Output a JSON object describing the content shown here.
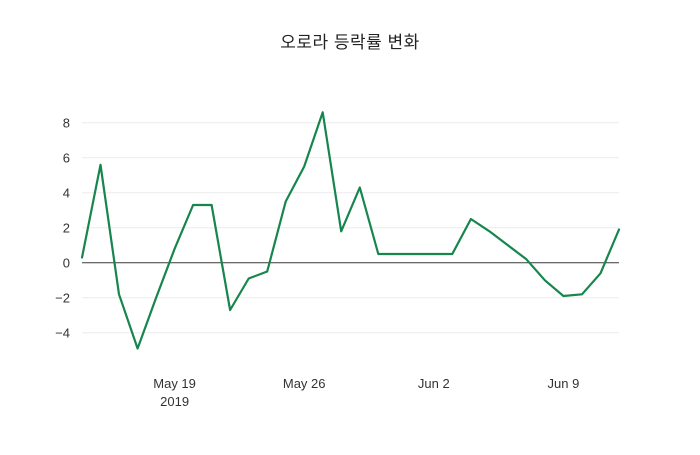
{
  "chart_data": {
    "type": "line",
    "title": "오로라 등락률 변화",
    "xlabel": "",
    "ylabel": "",
    "grid": "horizontal",
    "legend": "none",
    "zero_line": true,
    "line_color": "#17854e",
    "grid_color": "#ececec",
    "zero_line_color": "#3a3a3a",
    "tick_label_color": "#333333",
    "ylim": [
      -5.9,
      9.7
    ],
    "y_ticks": [
      -4,
      -2,
      0,
      2,
      4,
      6,
      8
    ],
    "y_tick_labels": [
      "−4",
      "−2",
      "0",
      "2",
      "4",
      "6",
      "8"
    ],
    "x": [
      "2019-05-14",
      "2019-05-15",
      "2019-05-16",
      "2019-05-17",
      "2019-05-18",
      "2019-05-19",
      "2019-05-20",
      "2019-05-21",
      "2019-05-22",
      "2019-05-23",
      "2019-05-24",
      "2019-05-25",
      "2019-05-26",
      "2019-05-27",
      "2019-05-28",
      "2019-05-29",
      "2019-05-30",
      "2019-05-31",
      "2019-06-01",
      "2019-06-02",
      "2019-06-03",
      "2019-06-04",
      "2019-06-05",
      "2019-06-06",
      "2019-06-07",
      "2019-06-08",
      "2019-06-09",
      "2019-06-10",
      "2019-06-11",
      "2019-06-12"
    ],
    "series": [
      {
        "name": "등락률",
        "values": [
          0.3,
          5.6,
          -1.8,
          -4.9,
          -2.0,
          0.8,
          3.3,
          3.3,
          -2.7,
          -0.9,
          -0.5,
          3.5,
          5.5,
          8.6,
          1.8,
          4.3,
          0.5,
          0.5,
          0.5,
          0.5,
          0.5,
          2.5,
          1.8,
          1.0,
          0.2,
          -1.0,
          -1.9,
          -1.8,
          -0.6,
          1.9
        ]
      }
    ],
    "x_tick_labels": [
      {
        "index": 5,
        "label": "May 19",
        "sublabel": "2019"
      },
      {
        "index": 12,
        "label": "May 26",
        "sublabel": ""
      },
      {
        "index": 19,
        "label": "Jun 2",
        "sublabel": ""
      },
      {
        "index": 26,
        "label": "Jun 9",
        "sublabel": ""
      }
    ]
  }
}
